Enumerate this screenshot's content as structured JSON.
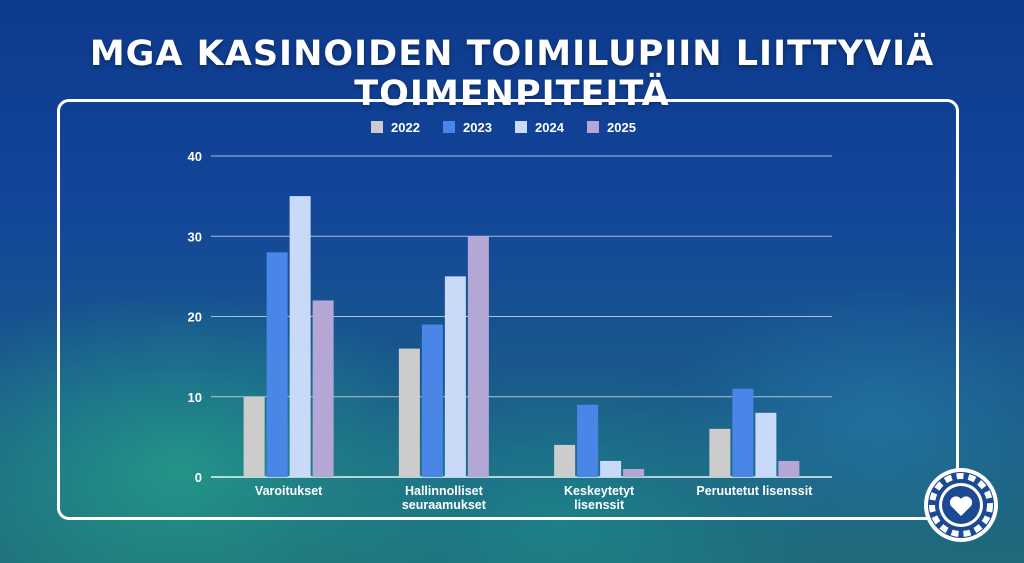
{
  "title": "MGA kasinoiden toimilupiin liittyviä toimenpiteitä",
  "colors": {
    "series": [
      "#cccccc",
      "#4a86e8",
      "#c9daf8",
      "#b4a7d6"
    ],
    "axis": "#ffffff",
    "grid": "#d9e6f2"
  },
  "badge_icon": "heart-chip-icon",
  "chart_data": {
    "type": "bar",
    "categories": [
      [
        "Varoitukset"
      ],
      [
        "Hallinnolliset",
        "seuraamukset"
      ],
      [
        "Keskeytetyt",
        "lisenssit"
      ],
      [
        "Peruutetut lisenssit"
      ]
    ],
    "series": [
      {
        "name": "2022",
        "values": [
          10,
          16,
          4,
          6
        ]
      },
      {
        "name": "2023",
        "values": [
          28,
          19,
          9,
          11
        ]
      },
      {
        "name": "2024",
        "values": [
          35,
          25,
          2,
          8
        ]
      },
      {
        "name": "2025",
        "values": [
          22,
          30,
          1,
          2
        ]
      }
    ],
    "yticks": [
      0,
      10,
      20,
      30,
      40
    ],
    "ylim": [
      0,
      40
    ],
    "grid": true,
    "legend": "top"
  }
}
